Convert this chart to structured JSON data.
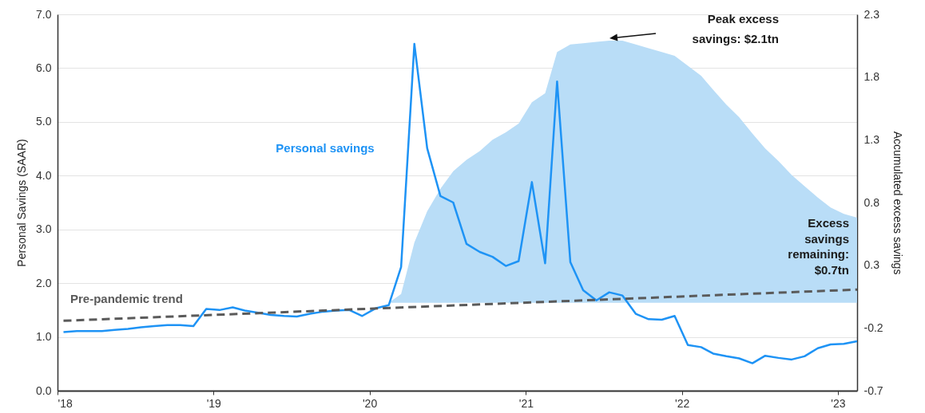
{
  "chart_data": {
    "type": "line",
    "ylabel": "Personal Savings (SAAR)",
    "y2label": "Accumulated excess savings",
    "x": [
      "2018-01-15",
      "2018-02-15",
      "2018-03-15",
      "2018-04-15",
      "2018-05-15",
      "2018-06-15",
      "2018-07-15",
      "2018-08-15",
      "2018-09-15",
      "2018-10-15",
      "2018-11-15",
      "2018-12-15",
      "2019-01-15",
      "2019-02-15",
      "2019-03-15",
      "2019-04-15",
      "2019-05-15",
      "2019-06-15",
      "2019-07-15",
      "2019-08-15",
      "2019-09-15",
      "2019-10-15",
      "2019-11-15",
      "2019-12-15",
      "2020-01-15",
      "2020-02-15",
      "2020-03-15",
      "2020-04-15",
      "2020-05-15",
      "2020-06-15",
      "2020-07-15",
      "2020-08-15",
      "2020-09-15",
      "2020-10-15",
      "2020-11-15",
      "2020-12-15",
      "2021-01-15",
      "2021-02-15",
      "2021-03-15",
      "2021-04-15",
      "2021-05-15",
      "2021-06-15",
      "2021-07-15",
      "2021-08-15",
      "2021-09-15",
      "2021-10-15",
      "2021-11-15",
      "2021-12-15",
      "2022-01-15",
      "2022-02-15",
      "2022-03-15",
      "2022-04-15",
      "2022-05-15",
      "2022-06-15",
      "2022-07-15",
      "2022-08-15",
      "2022-09-15",
      "2022-10-15",
      "2022-11-15",
      "2022-12-15",
      "2023-01-15",
      "2023-02-15"
    ],
    "series": [
      {
        "type": "area",
        "axis": "y2",
        "color": "#b9ddf7",
        "values": [
          null,
          null,
          null,
          null,
          null,
          null,
          null,
          null,
          null,
          null,
          null,
          null,
          null,
          null,
          null,
          null,
          null,
          null,
          null,
          null,
          null,
          null,
          null,
          null,
          null,
          0,
          0.07,
          0.48,
          0.73,
          0.91,
          1.05,
          1.14,
          1.21,
          1.3,
          1.36,
          1.43,
          1.6,
          1.67,
          2.0,
          2.06,
          2.07,
          2.08,
          2.09,
          2.09,
          2.06,
          2.03,
          2.0,
          1.97,
          1.89,
          1.81,
          1.7,
          1.58,
          1.48,
          1.35,
          1.23,
          1.13,
          1.02,
          0.93,
          0.84,
          0.76,
          0.71,
          0.68
        ]
      },
      {
        "name": "Personal savings",
        "color": "#1e93f5",
        "values": [
          1.09,
          1.11,
          1.11,
          1.11,
          1.13,
          1.15,
          1.18,
          1.2,
          1.22,
          1.22,
          1.2,
          1.52,
          1.5,
          1.55,
          1.49,
          1.45,
          1.41,
          1.39,
          1.38,
          1.43,
          1.47,
          1.49,
          1.5,
          1.39,
          1.53,
          1.59,
          2.3,
          6.45,
          4.51,
          3.62,
          3.5,
          2.73,
          2.58,
          2.49,
          2.32,
          2.41,
          3.88,
          2.37,
          5.75,
          2.39,
          1.87,
          1.68,
          1.83,
          1.77,
          1.43,
          1.33,
          1.32,
          1.39,
          0.85,
          0.81,
          0.69,
          0.64,
          0.6,
          0.51,
          0.65,
          0.61,
          0.58,
          0.64,
          0.79,
          0.86,
          0.87,
          0.92
        ]
      },
      {
        "type": "line",
        "name": "Pre-pandemic trend",
        "color": "#5a5a5a",
        "line_style": "dashed",
        "x": [
          "2018-01-15",
          "2023-02-15"
        ],
        "values": [
          1.3,
          1.88
        ]
      }
    ],
    "xlim": [
      "2018-01-01",
      "2023-02-15"
    ],
    "xticks": [
      {
        "value": "2018",
        "label": "'18"
      },
      {
        "value": "2019",
        "label": "'19"
      },
      {
        "value": "2020",
        "label": "'20"
      },
      {
        "value": "2021",
        "label": "'21"
      },
      {
        "value": "2022",
        "label": "'22"
      },
      {
        "value": "2023",
        "label": "'23"
      }
    ],
    "ylim": [
      0,
      7
    ],
    "yticks": [
      {
        "value": 0,
        "label": "0.0"
      },
      {
        "value": 1,
        "label": "1.0"
      },
      {
        "value": 2,
        "label": "2.0"
      },
      {
        "value": 3,
        "label": "3.0"
      },
      {
        "value": 4,
        "label": "4.0"
      },
      {
        "value": 5,
        "label": "5.0"
      },
      {
        "value": 6,
        "label": "6.0"
      },
      {
        "value": 7,
        "label": "7.0"
      }
    ],
    "y2lim": [
      -0.7,
      2.3
    ],
    "y2ticks": [
      -0.7,
      -0.2,
      0.3,
      0.8,
      1.3,
      1.8,
      2.3
    ],
    "grid": "y",
    "annotations": [
      "Peak excess savings: $2.1tn",
      "Excess savings remaining: $0.7tn"
    ]
  }
}
